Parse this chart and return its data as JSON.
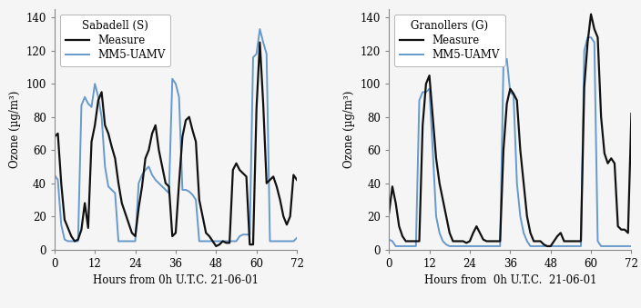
{
  "sabadell_measure_x": [
    0,
    1,
    2,
    3,
    4,
    5,
    6,
    7,
    8,
    9,
    10,
    11,
    12,
    13,
    14,
    15,
    16,
    17,
    18,
    19,
    20,
    21,
    22,
    23,
    24,
    25,
    26,
    27,
    28,
    29,
    30,
    31,
    32,
    33,
    34,
    35,
    36,
    37,
    38,
    39,
    40,
    41,
    42,
    43,
    44,
    45,
    46,
    47,
    48,
    49,
    50,
    51,
    52,
    53,
    54,
    55,
    56,
    57,
    58,
    59,
    60,
    61,
    62,
    63,
    64,
    65,
    66,
    67,
    68,
    69,
    70,
    71,
    72
  ],
  "sabadell_measure_y": [
    68,
    70,
    40,
    18,
    13,
    8,
    5,
    6,
    12,
    28,
    13,
    65,
    75,
    90,
    95,
    75,
    70,
    62,
    55,
    40,
    28,
    22,
    16,
    10,
    8,
    25,
    38,
    55,
    60,
    70,
    75,
    60,
    50,
    40,
    38,
    8,
    10,
    40,
    68,
    78,
    80,
    72,
    65,
    30,
    20,
    10,
    8,
    5,
    2,
    3,
    5,
    4,
    4,
    48,
    52,
    48,
    46,
    44,
    3,
    3,
    85,
    125,
    88,
    40,
    42,
    44,
    38,
    30,
    20,
    15,
    20,
    45,
    42
  ],
  "sabadell_uamv_x": [
    0,
    1,
    2,
    3,
    4,
    5,
    6,
    7,
    8,
    9,
    10,
    11,
    12,
    13,
    14,
    15,
    16,
    17,
    18,
    19,
    20,
    21,
    22,
    23,
    24,
    25,
    26,
    27,
    28,
    29,
    30,
    31,
    32,
    33,
    34,
    35,
    36,
    37,
    38,
    39,
    40,
    41,
    42,
    43,
    44,
    45,
    46,
    47,
    48,
    49,
    50,
    51,
    52,
    53,
    54,
    55,
    56,
    57,
    58,
    59,
    60,
    61,
    62,
    63,
    64,
    65,
    66,
    67,
    68,
    69,
    70,
    71,
    72
  ],
  "sabadell_uamv_y": [
    45,
    42,
    15,
    6,
    5,
    5,
    5,
    5,
    87,
    92,
    88,
    86,
    100,
    92,
    80,
    50,
    38,
    36,
    34,
    5,
    5,
    5,
    5,
    5,
    5,
    40,
    45,
    48,
    50,
    45,
    42,
    40,
    38,
    36,
    34,
    103,
    100,
    92,
    36,
    36,
    35,
    33,
    30,
    5,
    5,
    5,
    5,
    5,
    5,
    5,
    5,
    5,
    5,
    5,
    5,
    8,
    9,
    9,
    9,
    116,
    118,
    133,
    125,
    118,
    5,
    5,
    5,
    5,
    5,
    5,
    5,
    5,
    7
  ],
  "granollers_measure_x": [
    0,
    1,
    2,
    3,
    4,
    5,
    6,
    7,
    8,
    9,
    10,
    11,
    12,
    13,
    14,
    15,
    16,
    17,
    18,
    19,
    20,
    21,
    22,
    23,
    24,
    25,
    26,
    27,
    28,
    29,
    30,
    31,
    32,
    33,
    34,
    35,
    36,
    37,
    38,
    39,
    40,
    41,
    42,
    43,
    44,
    45,
    46,
    47,
    48,
    49,
    50,
    51,
    52,
    53,
    54,
    55,
    56,
    57,
    58,
    59,
    60,
    61,
    62,
    63,
    64,
    65,
    66,
    67,
    68,
    69,
    70,
    71,
    72
  ],
  "granollers_measure_y": [
    22,
    38,
    28,
    14,
    8,
    5,
    5,
    5,
    5,
    5,
    75,
    100,
    105,
    80,
    55,
    40,
    30,
    20,
    10,
    5,
    5,
    5,
    5,
    4,
    5,
    10,
    14,
    10,
    6,
    5,
    5,
    5,
    5,
    5,
    60,
    88,
    97,
    94,
    90,
    60,
    40,
    20,
    10,
    5,
    5,
    5,
    3,
    2,
    2,
    5,
    8,
    10,
    5,
    5,
    5,
    5,
    5,
    5,
    98,
    125,
    142,
    133,
    128,
    80,
    58,
    52,
    55,
    52,
    14,
    12,
    12,
    10,
    82
  ],
  "granollers_uamv_x": [
    0,
    1,
    2,
    3,
    4,
    5,
    6,
    7,
    8,
    9,
    10,
    11,
    12,
    13,
    14,
    15,
    16,
    17,
    18,
    19,
    20,
    21,
    22,
    23,
    24,
    25,
    26,
    27,
    28,
    29,
    30,
    31,
    32,
    33,
    34,
    35,
    36,
    37,
    38,
    39,
    40,
    41,
    42,
    43,
    44,
    45,
    46,
    47,
    48,
    49,
    50,
    51,
    52,
    53,
    54,
    55,
    56,
    57,
    58,
    59,
    60,
    61,
    62,
    63,
    64,
    65,
    66,
    67,
    68,
    69,
    70,
    71,
    72
  ],
  "granollers_uamv_y": [
    6,
    5,
    2,
    2,
    2,
    2,
    2,
    2,
    2,
    90,
    95,
    95,
    97,
    60,
    20,
    10,
    5,
    3,
    2,
    2,
    2,
    2,
    2,
    2,
    2,
    2,
    2,
    2,
    2,
    2,
    2,
    2,
    2,
    2,
    112,
    115,
    95,
    93,
    40,
    20,
    10,
    5,
    2,
    2,
    2,
    2,
    2,
    2,
    2,
    2,
    2,
    2,
    2,
    2,
    2,
    2,
    2,
    2,
    120,
    128,
    128,
    125,
    5,
    2,
    2,
    2,
    2,
    2,
    2,
    2,
    2,
    2,
    2
  ],
  "xlim": [
    0,
    72
  ],
  "ylim": [
    0,
    145
  ],
  "xticks": [
    0,
    12,
    24,
    36,
    48,
    60,
    72
  ],
  "yticks": [
    0,
    20,
    40,
    60,
    80,
    100,
    120,
    140
  ],
  "xlabel_left": "Hours from 0h U.T.C. 21-06-01",
  "xlabel_right": "Hours from  0h U.T.C.  21-06-01",
  "ylabel": "Ozone (µg/m³)",
  "title_left": "Sabadell (S)",
  "title_right": "Granollers (G)",
  "measure_color": "#111111",
  "uamv_color": "#6699cc",
  "measure_label": "Measure",
  "uamv_label": "MM5-UAMV",
  "measure_lw": 1.6,
  "uamv_lw": 1.4,
  "bg_color": "#f5f5f5"
}
